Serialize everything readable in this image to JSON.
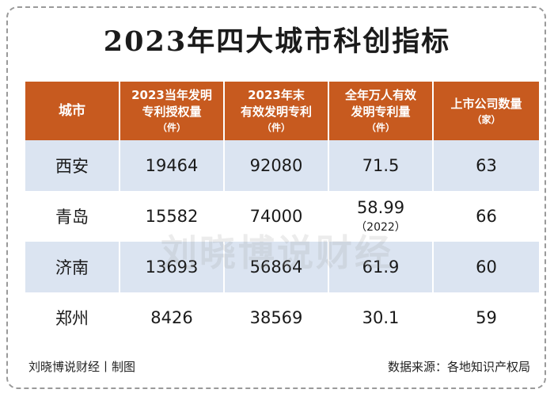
{
  "title": "2023年四大城市科创指标",
  "table": {
    "headers": [
      {
        "lines": [
          "城市"
        ],
        "unit": ""
      },
      {
        "lines": [
          "2023当年发明",
          "专利授权量"
        ],
        "unit": "（件）"
      },
      {
        "lines": [
          "2023年末",
          "有效发明专利"
        ],
        "unit": "（件）"
      },
      {
        "lines": [
          "全年万人有效",
          "发明专利量"
        ],
        "unit": "（件）"
      },
      {
        "lines": [
          "上市公司数量"
        ],
        "unit": "（家）"
      }
    ],
    "rows": [
      {
        "city": "西安",
        "granted": "19464",
        "valid": "92080",
        "per10k": "71.5",
        "per10k_note": "",
        "listed": "63"
      },
      {
        "city": "青岛",
        "granted": "15582",
        "valid": "74000",
        "per10k": "58.99",
        "per10k_note": "（2022）",
        "listed": "66"
      },
      {
        "city": "济南",
        "granted": "13693",
        "valid": "56864",
        "per10k": "61.9",
        "per10k_note": "",
        "listed": "60"
      },
      {
        "city": "郑州",
        "granted": "8426",
        "valid": "38569",
        "per10k": "30.1",
        "per10k_note": "",
        "listed": "59"
      }
    ]
  },
  "watermark": "刘晓博说财经",
  "footer": {
    "left": "刘晓博说财经丨制图",
    "right": "数据来源：各地知识产权局"
  },
  "chart_data": {
    "type": "table",
    "title": "2023年四大城市科创指标",
    "columns": [
      "城市",
      "2023当年发明专利授权量（件）",
      "2023年末有效发明专利（件）",
      "全年万人有效发明专利量（件）",
      "上市公司数量（家）"
    ],
    "rows": [
      [
        "西安",
        19464,
        92080,
        71.5,
        63
      ],
      [
        "青岛",
        15582,
        74000,
        58.99,
        66
      ],
      [
        "济南",
        13693,
        56864,
        61.9,
        60
      ],
      [
        "郑州",
        8426,
        38569,
        30.1,
        59
      ]
    ],
    "notes": {
      "青岛_全年万人有效发明专利量": "（2022）"
    }
  },
  "colors": {
    "header_bg": "#c75a1f",
    "row_alt_bg": "#dbe4f1",
    "text": "#1a1a1a"
  }
}
